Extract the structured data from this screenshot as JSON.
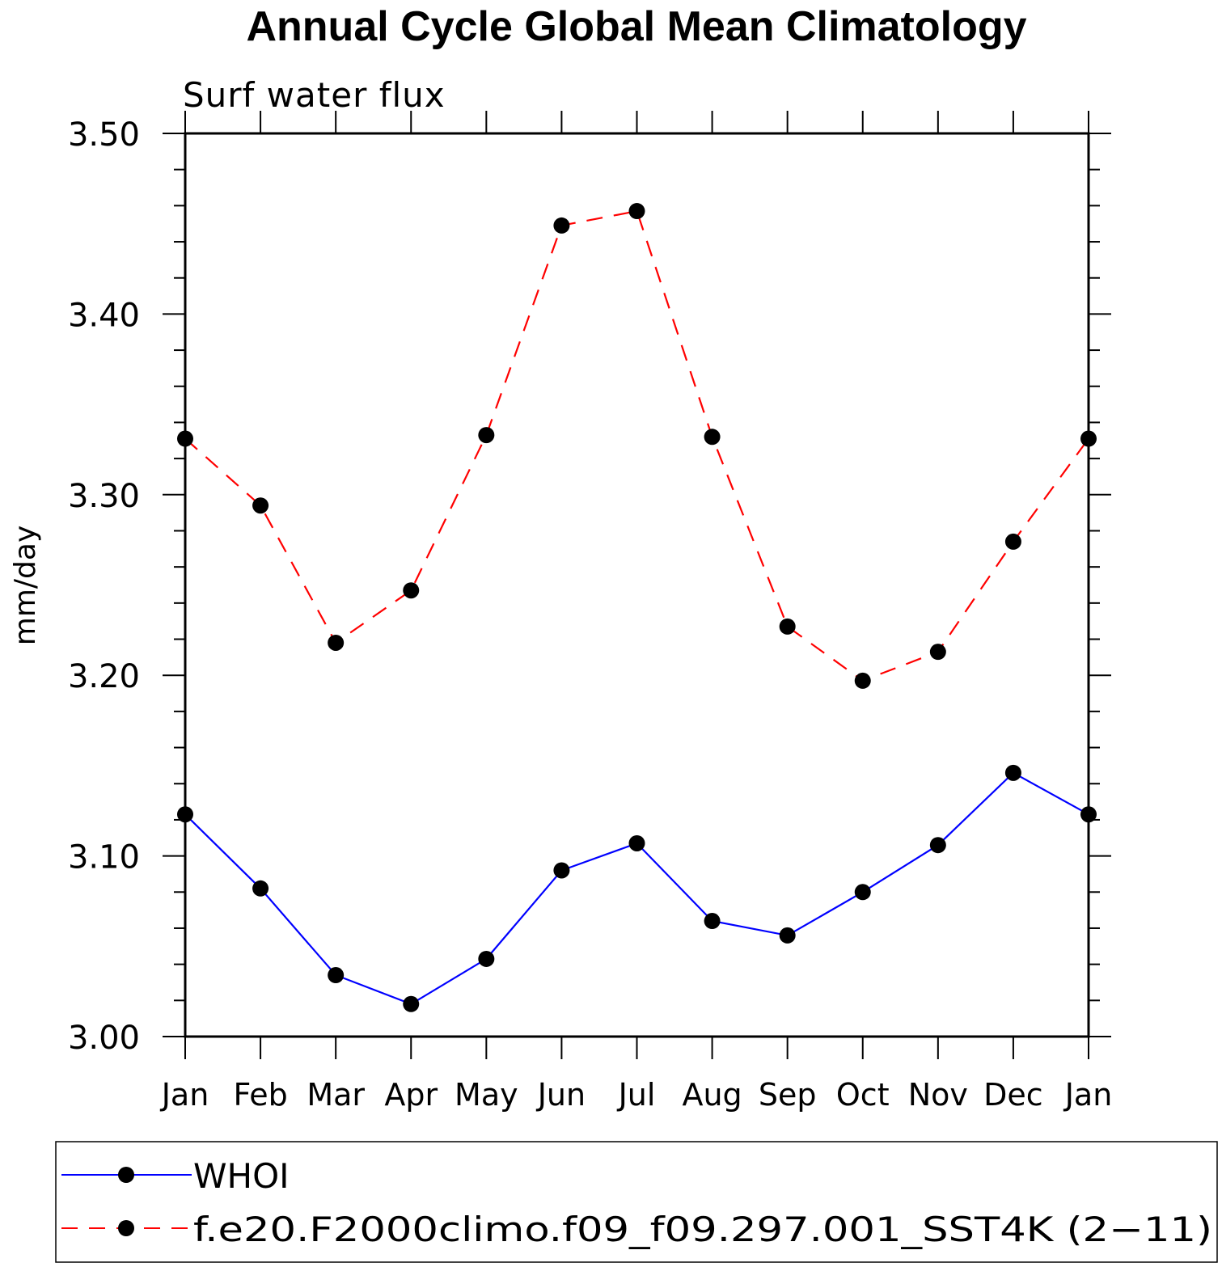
{
  "chart_data": {
    "type": "line",
    "title": "Annual Cycle Global Mean Climatology",
    "subtitle": "Surf water flux",
    "ylabel": "mm/day",
    "xlabel": "",
    "categories": [
      "Jan",
      "Feb",
      "Mar",
      "Apr",
      "May",
      "Jun",
      "Jul",
      "Aug",
      "Sep",
      "Oct",
      "Nov",
      "Dec",
      "Jan"
    ],
    "ylim": [
      3.0,
      3.5
    ],
    "yticks": [
      "3.00",
      "3.10",
      "3.20",
      "3.30",
      "3.40",
      "3.50"
    ],
    "series": [
      {
        "name": "WHOI",
        "color": "#0000ff",
        "style": "solid",
        "values": [
          3.123,
          3.082,
          3.034,
          3.018,
          3.043,
          3.092,
          3.107,
          3.064,
          3.056,
          3.08,
          3.106,
          3.146,
          3.123
        ]
      },
      {
        "name": "f.e20.F2000climo.f09_f09.297.001_SST4K (2−11)",
        "color": "#ff0000",
        "style": "dashed",
        "values": [
          3.331,
          3.294,
          3.218,
          3.247,
          3.333,
          3.449,
          3.457,
          3.332,
          3.227,
          3.197,
          3.213,
          3.274,
          3.331
        ]
      }
    ],
    "marker_color": "#000000",
    "legend_placement": "bottom"
  }
}
